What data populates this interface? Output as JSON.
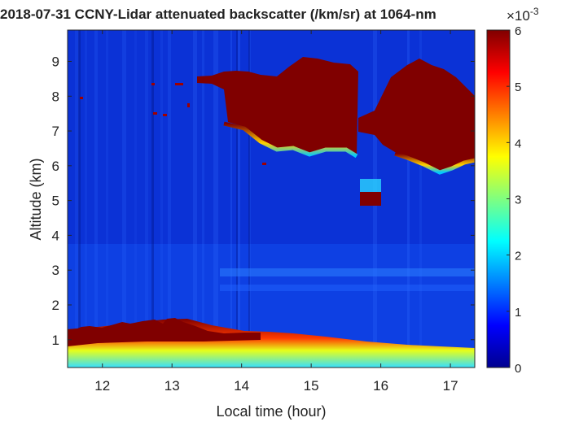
{
  "chart_data": {
    "type": "heatmap",
    "title": "2018-07-31  CCNY-Lidar attenuated backscatter (/km/sr) at 1064-nm",
    "xlabel": "Local time (hour)",
    "ylabel": "Altitude (km)",
    "x_range": [
      11.5,
      17.35
    ],
    "y_range": [
      0.2,
      9.9
    ],
    "x_ticks": [
      "12",
      "13",
      "14",
      "15",
      "16",
      "17"
    ],
    "y_ticks": [
      "1",
      "2",
      "3",
      "4",
      "5",
      "6",
      "7",
      "8",
      "9"
    ],
    "colorbar": {
      "range": [
        0,
        6
      ],
      "ticks": [
        "0",
        "1",
        "2",
        "3",
        "4",
        "5",
        "6"
      ],
      "exponent": "×10",
      "exponent_power": "-3",
      "colormap": "jet"
    },
    "features": [
      {
        "kind": "boundary-layer-aerosol",
        "x": [
          11.5,
          17.35
        ],
        "y": [
          0.3,
          1.6
        ],
        "value_peak": 6
      },
      {
        "kind": "cloud-layer",
        "x": [
          13.75,
          15.7
        ],
        "y": [
          6.5,
          8.8
        ],
        "value": 6
      },
      {
        "kind": "cloud-layer",
        "x": [
          16.0,
          17.35
        ],
        "y": [
          5.9,
          9.2
        ],
        "value": 6
      },
      {
        "kind": "cloud-fragment",
        "x": [
          15.7,
          16.05
        ],
        "y": [
          4.9,
          5.3
        ],
        "value": 6
      },
      {
        "kind": "aerosol-layer",
        "x": [
          13.5,
          17.35
        ],
        "y": [
          2.3,
          3.0
        ],
        "value": 1.2
      }
    ]
  }
}
